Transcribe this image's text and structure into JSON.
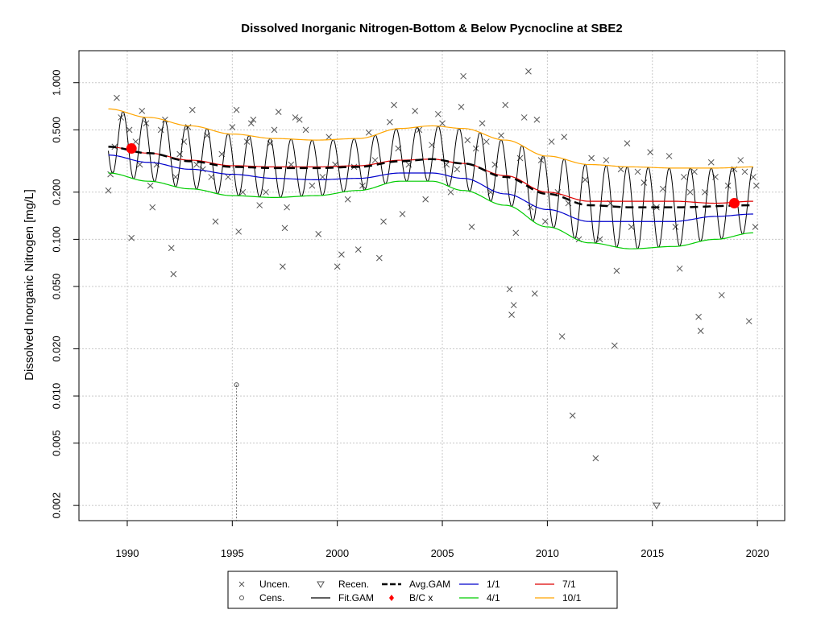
{
  "chart_data": {
    "type": "line",
    "title": "Dissolved Inorganic Nitrogen-Bottom & Below Pycnocline at SBE2",
    "xlabel": "",
    "ylabel": "Dissolved Inorganic Nitrogen [mg/L]",
    "y_scale": "log",
    "xlim": [
      1987.7,
      2021.3
    ],
    "ylim": [
      0.0016,
      1.6
    ],
    "x_ticks": [
      "1990",
      "1995",
      "2000",
      "2005",
      "2010",
      "2015",
      "2020"
    ],
    "y_ticks": [
      "0.002",
      "0.005",
      "0.010",
      "0.020",
      "0.050",
      "0.100",
      "0.200",
      "0.500",
      "1.000"
    ],
    "grid": true,
    "legend_position": "bottom",
    "legend": [
      {
        "label": "Uncen.",
        "symbol": "x",
        "color": "#555555"
      },
      {
        "label": "Cens.",
        "symbol": "circle",
        "color": "#555555"
      },
      {
        "label": "Recen.",
        "symbol": "triangle-down",
        "color": "#555555"
      },
      {
        "label": "Fit.GAM",
        "symbol": "line",
        "color": "#000000"
      },
      {
        "label": "Avg.GAM",
        "symbol": "dashed-line",
        "color": "#000000"
      },
      {
        "label": "B/C x",
        "symbol": "filled-circle",
        "color": "#ff0000"
      },
      {
        "label": "1/1",
        "symbol": "line",
        "color": "#0000cc"
      },
      {
        "label": "4/1",
        "symbol": "line",
        "color": "#00cc00"
      },
      {
        "label": "7/1",
        "symbol": "line",
        "color": "#dd0000"
      },
      {
        "label": "10/1",
        "symbol": "line",
        "color": "#ffa500"
      }
    ],
    "series": [
      {
        "name": "Avg.GAM",
        "color": "#000000",
        "style": "dashed",
        "points": [
          [
            1989.1,
            0.39
          ],
          [
            1991,
            0.355
          ],
          [
            1993,
            0.315
          ],
          [
            1995,
            0.29
          ],
          [
            1997,
            0.285
          ],
          [
            1999,
            0.285
          ],
          [
            2001,
            0.29
          ],
          [
            2003,
            0.315
          ],
          [
            2004.5,
            0.325
          ],
          [
            2006,
            0.305
          ],
          [
            2008,
            0.25
          ],
          [
            2010,
            0.195
          ],
          [
            2012,
            0.165
          ],
          [
            2014,
            0.16
          ],
          [
            2016,
            0.16
          ],
          [
            2019.8,
            0.165
          ]
        ]
      },
      {
        "name": "1/1",
        "color": "#0000cc",
        "style": "solid",
        "points": [
          [
            1989.1,
            0.345
          ],
          [
            1991,
            0.31
          ],
          [
            1993,
            0.28
          ],
          [
            1995,
            0.26
          ],
          [
            1997,
            0.245
          ],
          [
            1999,
            0.24
          ],
          [
            2001,
            0.245
          ],
          [
            2003,
            0.265
          ],
          [
            2004.5,
            0.265
          ],
          [
            2006,
            0.245
          ],
          [
            2008,
            0.195
          ],
          [
            2010,
            0.155
          ],
          [
            2012,
            0.13
          ],
          [
            2014,
            0.13
          ],
          [
            2016,
            0.13
          ],
          [
            2018,
            0.14
          ],
          [
            2019.8,
            0.145
          ]
        ]
      },
      {
        "name": "4/1",
        "color": "#00cc00",
        "style": "solid",
        "points": [
          [
            1989.1,
            0.265
          ],
          [
            1991,
            0.235
          ],
          [
            1993,
            0.21
          ],
          [
            1995,
            0.19
          ],
          [
            1997,
            0.185
          ],
          [
            1999,
            0.19
          ],
          [
            2001,
            0.205
          ],
          [
            2003,
            0.235
          ],
          [
            2004.5,
            0.235
          ],
          [
            2006,
            0.205
          ],
          [
            2008,
            0.165
          ],
          [
            2010,
            0.12
          ],
          [
            2012,
            0.095
          ],
          [
            2014,
            0.087
          ],
          [
            2016,
            0.09
          ],
          [
            2018,
            0.1
          ],
          [
            2019.8,
            0.11
          ]
        ]
      },
      {
        "name": "7/1",
        "color": "#dd0000",
        "style": "solid",
        "points": [
          [
            1989.1,
            0.39
          ],
          [
            1991,
            0.355
          ],
          [
            1993,
            0.32
          ],
          [
            1995,
            0.295
          ],
          [
            1997,
            0.29
          ],
          [
            1999,
            0.29
          ],
          [
            2001,
            0.295
          ],
          [
            2003,
            0.32
          ],
          [
            2004.5,
            0.325
          ],
          [
            2006,
            0.305
          ],
          [
            2008,
            0.255
          ],
          [
            2010,
            0.2
          ],
          [
            2012,
            0.175
          ],
          [
            2014,
            0.175
          ],
          [
            2016,
            0.175
          ],
          [
            2018,
            0.17
          ],
          [
            2019.8,
            0.175
          ]
        ]
      },
      {
        "name": "10/1",
        "color": "#ffa500",
        "style": "solid",
        "points": [
          [
            1989.1,
            0.68
          ],
          [
            1991,
            0.6
          ],
          [
            1993,
            0.53
          ],
          [
            1995,
            0.47
          ],
          [
            1997,
            0.44
          ],
          [
            1999,
            0.43
          ],
          [
            2001,
            0.44
          ],
          [
            2003,
            0.51
          ],
          [
            2004.5,
            0.53
          ],
          [
            2006,
            0.51
          ],
          [
            2008,
            0.43
          ],
          [
            2010,
            0.34
          ],
          [
            2012,
            0.3
          ],
          [
            2014,
            0.29
          ],
          [
            2016,
            0.285
          ],
          [
            2018,
            0.285
          ],
          [
            2019.8,
            0.29
          ]
        ]
      }
    ],
    "fit_gam": {
      "name": "Fit.GAM",
      "color": "#000000",
      "start_year": 1989.1,
      "end_year": 2019.8,
      "peak_phase": 0.8,
      "trough_phase": 0.35,
      "peak_series": "10/1",
      "trough_series": "4/1"
    },
    "bc_points": [
      {
        "x": 1990.2,
        "y": 0.38
      },
      {
        "x": 2018.9,
        "y": 0.17
      }
    ],
    "uncensored_points": [
      [
        1989.1,
        0.205
      ],
      [
        1989.2,
        0.26
      ],
      [
        1989.4,
        0.39
      ],
      [
        1989.5,
        0.8
      ],
      [
        1989.7,
        0.6
      ],
      [
        1990.1,
        0.5
      ],
      [
        1990.2,
        0.102
      ],
      [
        1990.4,
        0.42
      ],
      [
        1990.6,
        0.3
      ],
      [
        1990.7,
        0.66
      ],
      [
        1990.9,
        0.55
      ],
      [
        1991.1,
        0.22
      ],
      [
        1991.2,
        0.16
      ],
      [
        1991.4,
        0.3
      ],
      [
        1991.6,
        0.5
      ],
      [
        1991.8,
        0.58
      ],
      [
        1992.1,
        0.088
      ],
      [
        1992.2,
        0.06
      ],
      [
        1992.3,
        0.25
      ],
      [
        1992.5,
        0.35
      ],
      [
        1992.7,
        0.42
      ],
      [
        1992.9,
        0.52
      ],
      [
        1993.1,
        0.67
      ],
      [
        1993.3,
        0.3
      ],
      [
        1993.6,
        0.28
      ],
      [
        1993.8,
        0.46
      ],
      [
        1994.0,
        0.25
      ],
      [
        1994.2,
        0.13
      ],
      [
        1994.5,
        0.35
      ],
      [
        1994.8,
        0.25
      ],
      [
        1995.0,
        0.52
      ],
      [
        1995.2,
        0.67
      ],
      [
        1995.3,
        0.112
      ],
      [
        1995.5,
        0.2
      ],
      [
        1995.7,
        0.42
      ],
      [
        1995.9,
        0.55
      ],
      [
        1996.0,
        0.58
      ],
      [
        1996.3,
        0.165
      ],
      [
        1996.6,
        0.2
      ],
      [
        1996.8,
        0.41
      ],
      [
        1997.0,
        0.5
      ],
      [
        1997.2,
        0.65
      ],
      [
        1997.4,
        0.067
      ],
      [
        1997.5,
        0.118
      ],
      [
        1997.6,
        0.16
      ],
      [
        1997.8,
        0.3
      ],
      [
        1998.0,
        0.6
      ],
      [
        1998.2,
        0.58
      ],
      [
        1998.5,
        0.5
      ],
      [
        1998.8,
        0.22
      ],
      [
        1999.1,
        0.108
      ],
      [
        1999.3,
        0.25
      ],
      [
        1999.6,
        0.45
      ],
      [
        1999.9,
        0.3
      ],
      [
        2000.0,
        0.067
      ],
      [
        2000.2,
        0.08
      ],
      [
        2000.5,
        0.18
      ],
      [
        2000.8,
        0.29
      ],
      [
        2001.0,
        0.086
      ],
      [
        2001.2,
        0.22
      ],
      [
        2001.5,
        0.48
      ],
      [
        2001.8,
        0.32
      ],
      [
        2002.0,
        0.076
      ],
      [
        2002.2,
        0.13
      ],
      [
        2002.5,
        0.56
      ],
      [
        2002.7,
        0.72
      ],
      [
        2002.9,
        0.38
      ],
      [
        2003.1,
        0.145
      ],
      [
        2003.4,
        0.3
      ],
      [
        2003.7,
        0.66
      ],
      [
        2003.9,
        0.5
      ],
      [
        2004.2,
        0.18
      ],
      [
        2004.5,
        0.4
      ],
      [
        2004.8,
        0.63
      ],
      [
        2005.0,
        0.55
      ],
      [
        2005.2,
        0.3
      ],
      [
        2005.4,
        0.2
      ],
      [
        2005.7,
        0.28
      ],
      [
        2005.9,
        0.7
      ],
      [
        2006.0,
        1.1
      ],
      [
        2006.2,
        0.43
      ],
      [
        2006.4,
        0.12
      ],
      [
        2006.6,
        0.38
      ],
      [
        2006.9,
        0.55
      ],
      [
        2007.1,
        0.42
      ],
      [
        2007.3,
        0.2
      ],
      [
        2007.5,
        0.3
      ],
      [
        2007.8,
        0.46
      ],
      [
        2008.0,
        0.72
      ],
      [
        2008.2,
        0.048
      ],
      [
        2008.3,
        0.033
      ],
      [
        2008.4,
        0.038
      ],
      [
        2008.5,
        0.11
      ],
      [
        2008.7,
        0.33
      ],
      [
        2008.9,
        0.6
      ],
      [
        2009.1,
        1.18
      ],
      [
        2009.2,
        0.16
      ],
      [
        2009.4,
        0.045
      ],
      [
        2009.5,
        0.58
      ],
      [
        2009.7,
        0.32
      ],
      [
        2009.9,
        0.13
      ],
      [
        2010.2,
        0.42
      ],
      [
        2010.5,
        0.2
      ],
      [
        2010.7,
        0.024
      ],
      [
        2010.8,
        0.45
      ],
      [
        2011.0,
        0.17
      ],
      [
        2011.2,
        0.0075
      ],
      [
        2011.5,
        0.1
      ],
      [
        2011.8,
        0.24
      ],
      [
        2012.1,
        0.33
      ],
      [
        2012.3,
        0.004
      ],
      [
        2012.5,
        0.1
      ],
      [
        2012.8,
        0.32
      ],
      [
        2013.0,
        0.17
      ],
      [
        2013.2,
        0.021
      ],
      [
        2013.3,
        0.063
      ],
      [
        2013.5,
        0.28
      ],
      [
        2013.8,
        0.41
      ],
      [
        2014.0,
        0.12
      ],
      [
        2014.3,
        0.27
      ],
      [
        2014.6,
        0.23
      ],
      [
        2014.9,
        0.36
      ],
      [
        2015.2,
        0.16
      ],
      [
        2015.5,
        0.21
      ],
      [
        2015.8,
        0.34
      ],
      [
        2016.1,
        0.12
      ],
      [
        2016.3,
        0.065
      ],
      [
        2016.5,
        0.25
      ],
      [
        2016.8,
        0.2
      ],
      [
        2017.0,
        0.27
      ],
      [
        2017.2,
        0.032
      ],
      [
        2017.3,
        0.026
      ],
      [
        2017.5,
        0.2
      ],
      [
        2017.8,
        0.31
      ],
      [
        2018.0,
        0.25
      ],
      [
        2018.3,
        0.044
      ],
      [
        2018.6,
        0.22
      ],
      [
        2018.9,
        0.28
      ],
      [
        2019.2,
        0.32
      ],
      [
        2019.4,
        0.27
      ],
      [
        2019.6,
        0.03
      ],
      [
        2019.8,
        0.25
      ],
      [
        2019.9,
        0.12
      ],
      [
        2019.95,
        0.22
      ]
    ],
    "censored_points": [
      {
        "x": 1995.2,
        "y": 0.0118,
        "lower_limit": 0.0016
      }
    ],
    "recensored_points": [
      {
        "x": 2015.2,
        "y": 0.002
      }
    ]
  }
}
